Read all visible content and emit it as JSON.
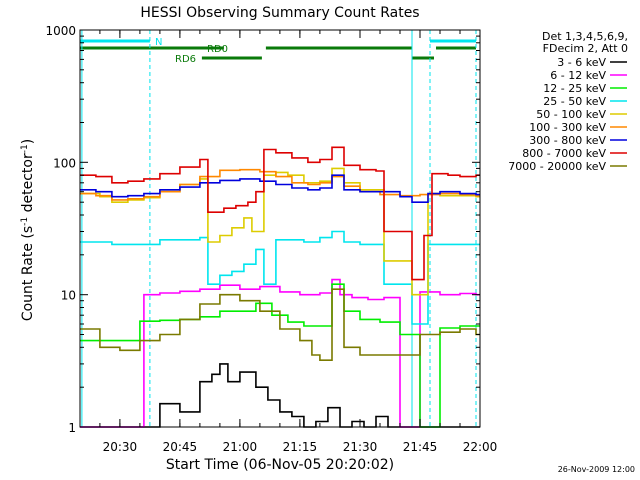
{
  "chart_data": {
    "type": "line",
    "title": "HESSI Observing Summary Count Rates",
    "xlabel": "Start Time (06-Nov-05 20:20:02)",
    "ylabel_main": "Count Rate (s",
    "ylabel_sup1": "-1",
    "ylabel_mid": " detector",
    "ylabel_sup2": "-1",
    "ylabel_end": ")",
    "ylog": true,
    "ylim": [
      1,
      1000
    ],
    "xlim": [
      "20:20:02",
      "22:00"
    ],
    "x_ticks": [
      "20:30",
      "20:45",
      "21:00",
      "21:15",
      "21:30",
      "21:45",
      "22:00"
    ],
    "y_ticks": [
      "1",
      "10",
      "100",
      "1000"
    ],
    "legend_header": [
      "Det 1,3,4,5,6,9,",
      "FDecim 2, Att 0"
    ],
    "legend_position": "right-outside",
    "timestamp": "26-Nov-2009 12:00",
    "flag_labels": {
      "night": "N",
      "rd0": "RD0",
      "rd6": "RD6"
    },
    "vertical_lines": {
      "solid_cyan": [
        "20:20:30",
        "21:43:00"
      ],
      "dashed_cyan": [
        "20:37:30",
        "21:47:30",
        "21:59:00"
      ]
    },
    "flags": [
      {
        "label": "N",
        "color": "#00e5ee",
        "level": "top",
        "segments": [
          [
            "20:20:02",
            "20:37:30"
          ],
          [
            "21:47:30",
            "21:59:00"
          ]
        ]
      },
      {
        "label": "RD0",
        "color": "#0a7a0a",
        "level": "middle",
        "segments": [
          [
            "20:20:02",
            "20:56:00"
          ],
          [
            "21:06:30",
            "21:43:00"
          ],
          [
            "21:49:00",
            "21:59:00"
          ]
        ]
      },
      {
        "label": "RD6",
        "color": "#0a7a0a",
        "level": "bottom",
        "segments": [
          [
            "20:50:30",
            "21:05:30"
          ],
          [
            "21:43:00",
            "21:48:30"
          ]
        ]
      }
    ],
    "series": [
      {
        "name": "3 - 6 keV",
        "color": "#000000",
        "x": [
          "20:20:02",
          "20:27:00",
          "20:36:00",
          "20:40:00",
          "20:45:00",
          "20:50:00",
          "20:53:00",
          "20:55:00",
          "20:57:00",
          "21:00:00",
          "21:04:00",
          "21:07:00",
          "21:10:00",
          "21:13:00",
          "21:16:00",
          "21:19:00",
          "21:22:00",
          "21:25:00",
          "21:28:00",
          "21:31:00",
          "21:34:00",
          "21:37:00",
          "21:40:00"
        ],
        "y": [
          1,
          1,
          1,
          1.5,
          1.3,
          2.2,
          2.5,
          3.0,
          2.2,
          2.6,
          2.0,
          1.6,
          1.3,
          1.2,
          1.0,
          1.1,
          1.4,
          1.0,
          1.1,
          1.0,
          1.2,
          1.0,
          1.0
        ]
      },
      {
        "name": "6 - 12 keV",
        "color": "#ff00ff",
        "x": [
          "20:20:02",
          "20:27:00",
          "20:36:00",
          "20:40:00",
          "20:45:00",
          "20:50:00",
          "20:55:00",
          "21:00:00",
          "21:05:00",
          "21:10:00",
          "21:15:00",
          "21:20:00",
          "21:23:00",
          "21:25:00",
          "21:28:00",
          "21:32:00",
          "21:36:00",
          "21:40:00",
          "21:45:00",
          "21:50:00",
          "21:55:00",
          "21:59:00"
        ],
        "y": [
          1,
          1,
          10.0,
          10.3,
          10.6,
          11.0,
          11.8,
          11.0,
          11.5,
          10.5,
          10.0,
          10.3,
          13.0,
          10.0,
          9.5,
          9.2,
          9.5,
          1,
          10.5,
          10.0,
          10.2,
          10.0
        ]
      },
      {
        "name": "12 - 25 keV",
        "color": "#00ee00",
        "x": [
          "20:20:02",
          "20:30:00",
          "20:35:00",
          "20:40:00",
          "20:45:00",
          "20:50:00",
          "20:55:00",
          "21:00:00",
          "21:04:00",
          "21:08:00",
          "21:12:00",
          "21:16:00",
          "21:20:00",
          "21:23:00",
          "21:26:00",
          "21:30:00",
          "21:35:00",
          "21:40:00",
          "21:45:00",
          "21:50:00",
          "21:55:00",
          "21:59:00"
        ],
        "y": [
          4.5,
          4.5,
          6.3,
          6.4,
          6.5,
          6.8,
          7.5,
          7.5,
          8.6,
          7.0,
          6.2,
          5.8,
          5.8,
          12.0,
          7.5,
          6.5,
          6.2,
          5.0,
          1,
          5.6,
          5.8,
          5.8
        ]
      },
      {
        "name": "25 - 50 keV",
        "color": "#00e5ee",
        "x": [
          "20:20:02",
          "20:24:00",
          "20:28:00",
          "20:32:00",
          "20:36:00",
          "20:40:00",
          "20:45:00",
          "20:50:00",
          "20:52:00",
          "20:55:00",
          "20:58:00",
          "21:01:00",
          "21:04:00",
          "21:06:00",
          "21:09:00",
          "21:12:00",
          "21:16:00",
          "21:20:00",
          "21:23:00",
          "21:26:00",
          "21:30:00",
          "21:34:00",
          "21:36:00",
          "21:40:00",
          "21:43:00",
          "21:47:00",
          "21:50:00",
          "21:55:00",
          "21:59:00"
        ],
        "y": [
          25,
          25,
          24,
          24,
          24,
          26,
          26,
          27,
          12,
          14,
          15,
          17,
          22,
          12,
          26,
          26,
          25,
          27,
          30,
          25,
          24,
          24,
          12,
          12,
          6,
          24,
          24,
          24,
          24
        ]
      },
      {
        "name": "50 - 100 keV",
        "color": "#ddcc00",
        "x": [
          "20:20:02",
          "20:25:00",
          "20:28:00",
          "20:32:00",
          "20:36:00",
          "20:40:00",
          "20:45:00",
          "20:50:00",
          "20:52:00",
          "20:55:00",
          "20:58:00",
          "21:01:00",
          "21:03:00",
          "21:06:00",
          "21:09:00",
          "21:12:00",
          "21:16:00",
          "21:20:00",
          "21:23:00",
          "21:26:00",
          "21:30:00",
          "21:36:00",
          "21:40:00",
          "21:43:00",
          "21:47:00",
          "21:50:00",
          "21:59:00"
        ],
        "y": [
          58,
          55,
          50,
          52,
          54,
          60,
          68,
          75,
          25,
          28,
          32,
          38,
          30,
          80,
          84,
          80,
          70,
          72,
          90,
          70,
          62,
          18,
          18,
          10,
          58,
          56,
          55
        ]
      },
      {
        "name": "100 - 300 keV",
        "color": "#ff8800",
        "x": [
          "20:20:02",
          "20:24:00",
          "20:28:00",
          "20:32:00",
          "20:36:00",
          "20:40:00",
          "20:45:00",
          "20:50:00",
          "20:55:00",
          "21:00:00",
          "21:05:00",
          "21:09:00",
          "21:13:00",
          "21:17:00",
          "21:20:00",
          "21:23:00",
          "21:26:00",
          "21:30:00",
          "21:35:00",
          "21:40:00",
          "21:45:00",
          "21:50:00",
          "21:55:00",
          "21:59:00"
        ],
        "y": [
          58,
          56,
          52,
          53,
          55,
          60,
          68,
          78,
          87,
          88,
          85,
          78,
          70,
          68,
          70,
          78,
          66,
          60,
          57,
          56,
          57,
          58,
          57,
          56
        ]
      },
      {
        "name": "300 - 800 keV",
        "color": "#0000dd",
        "x": [
          "20:20:02",
          "20:24:00",
          "20:28:00",
          "20:32:00",
          "20:36:00",
          "20:40:00",
          "20:45:00",
          "20:50:00",
          "20:55:00",
          "21:00:00",
          "21:05:00",
          "21:09:00",
          "21:13:00",
          "21:17:00",
          "21:20:00",
          "21:23:00",
          "21:26:00",
          "21:30:00",
          "21:36:00",
          "21:40:00",
          "21:43:00",
          "21:47:00",
          "21:50:00",
          "21:55:00",
          "21:59:00"
        ],
        "y": [
          62,
          60,
          55,
          56,
          58,
          62,
          65,
          70,
          73,
          75,
          72,
          68,
          64,
          62,
          64,
          80,
          62,
          60,
          60,
          55,
          50,
          58,
          60,
          58,
          57
        ]
      },
      {
        "name": "800 - 7000 keV",
        "color": "#dd0000",
        "x": [
          "20:20:02",
          "20:24:00",
          "20:28:00",
          "20:32:00",
          "20:36:00",
          "20:40:00",
          "20:45:00",
          "20:50:00",
          "20:52:00",
          "20:56:00",
          "20:59:00",
          "21:02:00",
          "21:04:00",
          "21:06:00",
          "21:09:00",
          "21:13:00",
          "21:17:00",
          "21:20:00",
          "21:23:00",
          "21:26:00",
          "21:30:00",
          "21:34:00",
          "21:36:00",
          "21:40:00",
          "21:43:00",
          "21:46:00",
          "21:48:00",
          "21:52:00",
          "21:55:00",
          "21:59:00"
        ],
        "y": [
          80,
          78,
          70,
          72,
          75,
          82,
          92,
          105,
          42,
          45,
          47,
          50,
          60,
          125,
          118,
          108,
          100,
          105,
          130,
          95,
          88,
          86,
          30,
          30,
          13,
          28,
          82,
          80,
          78,
          80
        ]
      },
      {
        "name": "7000 - 20000 keV",
        "color": "#7a7a00",
        "x": [
          "20:20:02",
          "20:25:00",
          "20:30:00",
          "20:35:00",
          "20:40:00",
          "20:45:00",
          "20:50:00",
          "20:55:00",
          "21:00:00",
          "21:05:00",
          "21:10:00",
          "21:15:00",
          "21:18:00",
          "21:20:00",
          "21:23:00",
          "21:26:00",
          "21:30:00",
          "21:35:00",
          "21:40:00",
          "21:45:00",
          "21:50:00",
          "21:55:00",
          "21:59:00"
        ],
        "y": [
          5.5,
          4.0,
          3.8,
          4.5,
          5.0,
          6.5,
          8.5,
          10.0,
          9.0,
          7.5,
          5.5,
          4.5,
          3.5,
          3.2,
          11.0,
          4.0,
          3.5,
          3.5,
          3.5,
          5.0,
          5.2,
          5.5,
          5.0
        ]
      }
    ]
  }
}
